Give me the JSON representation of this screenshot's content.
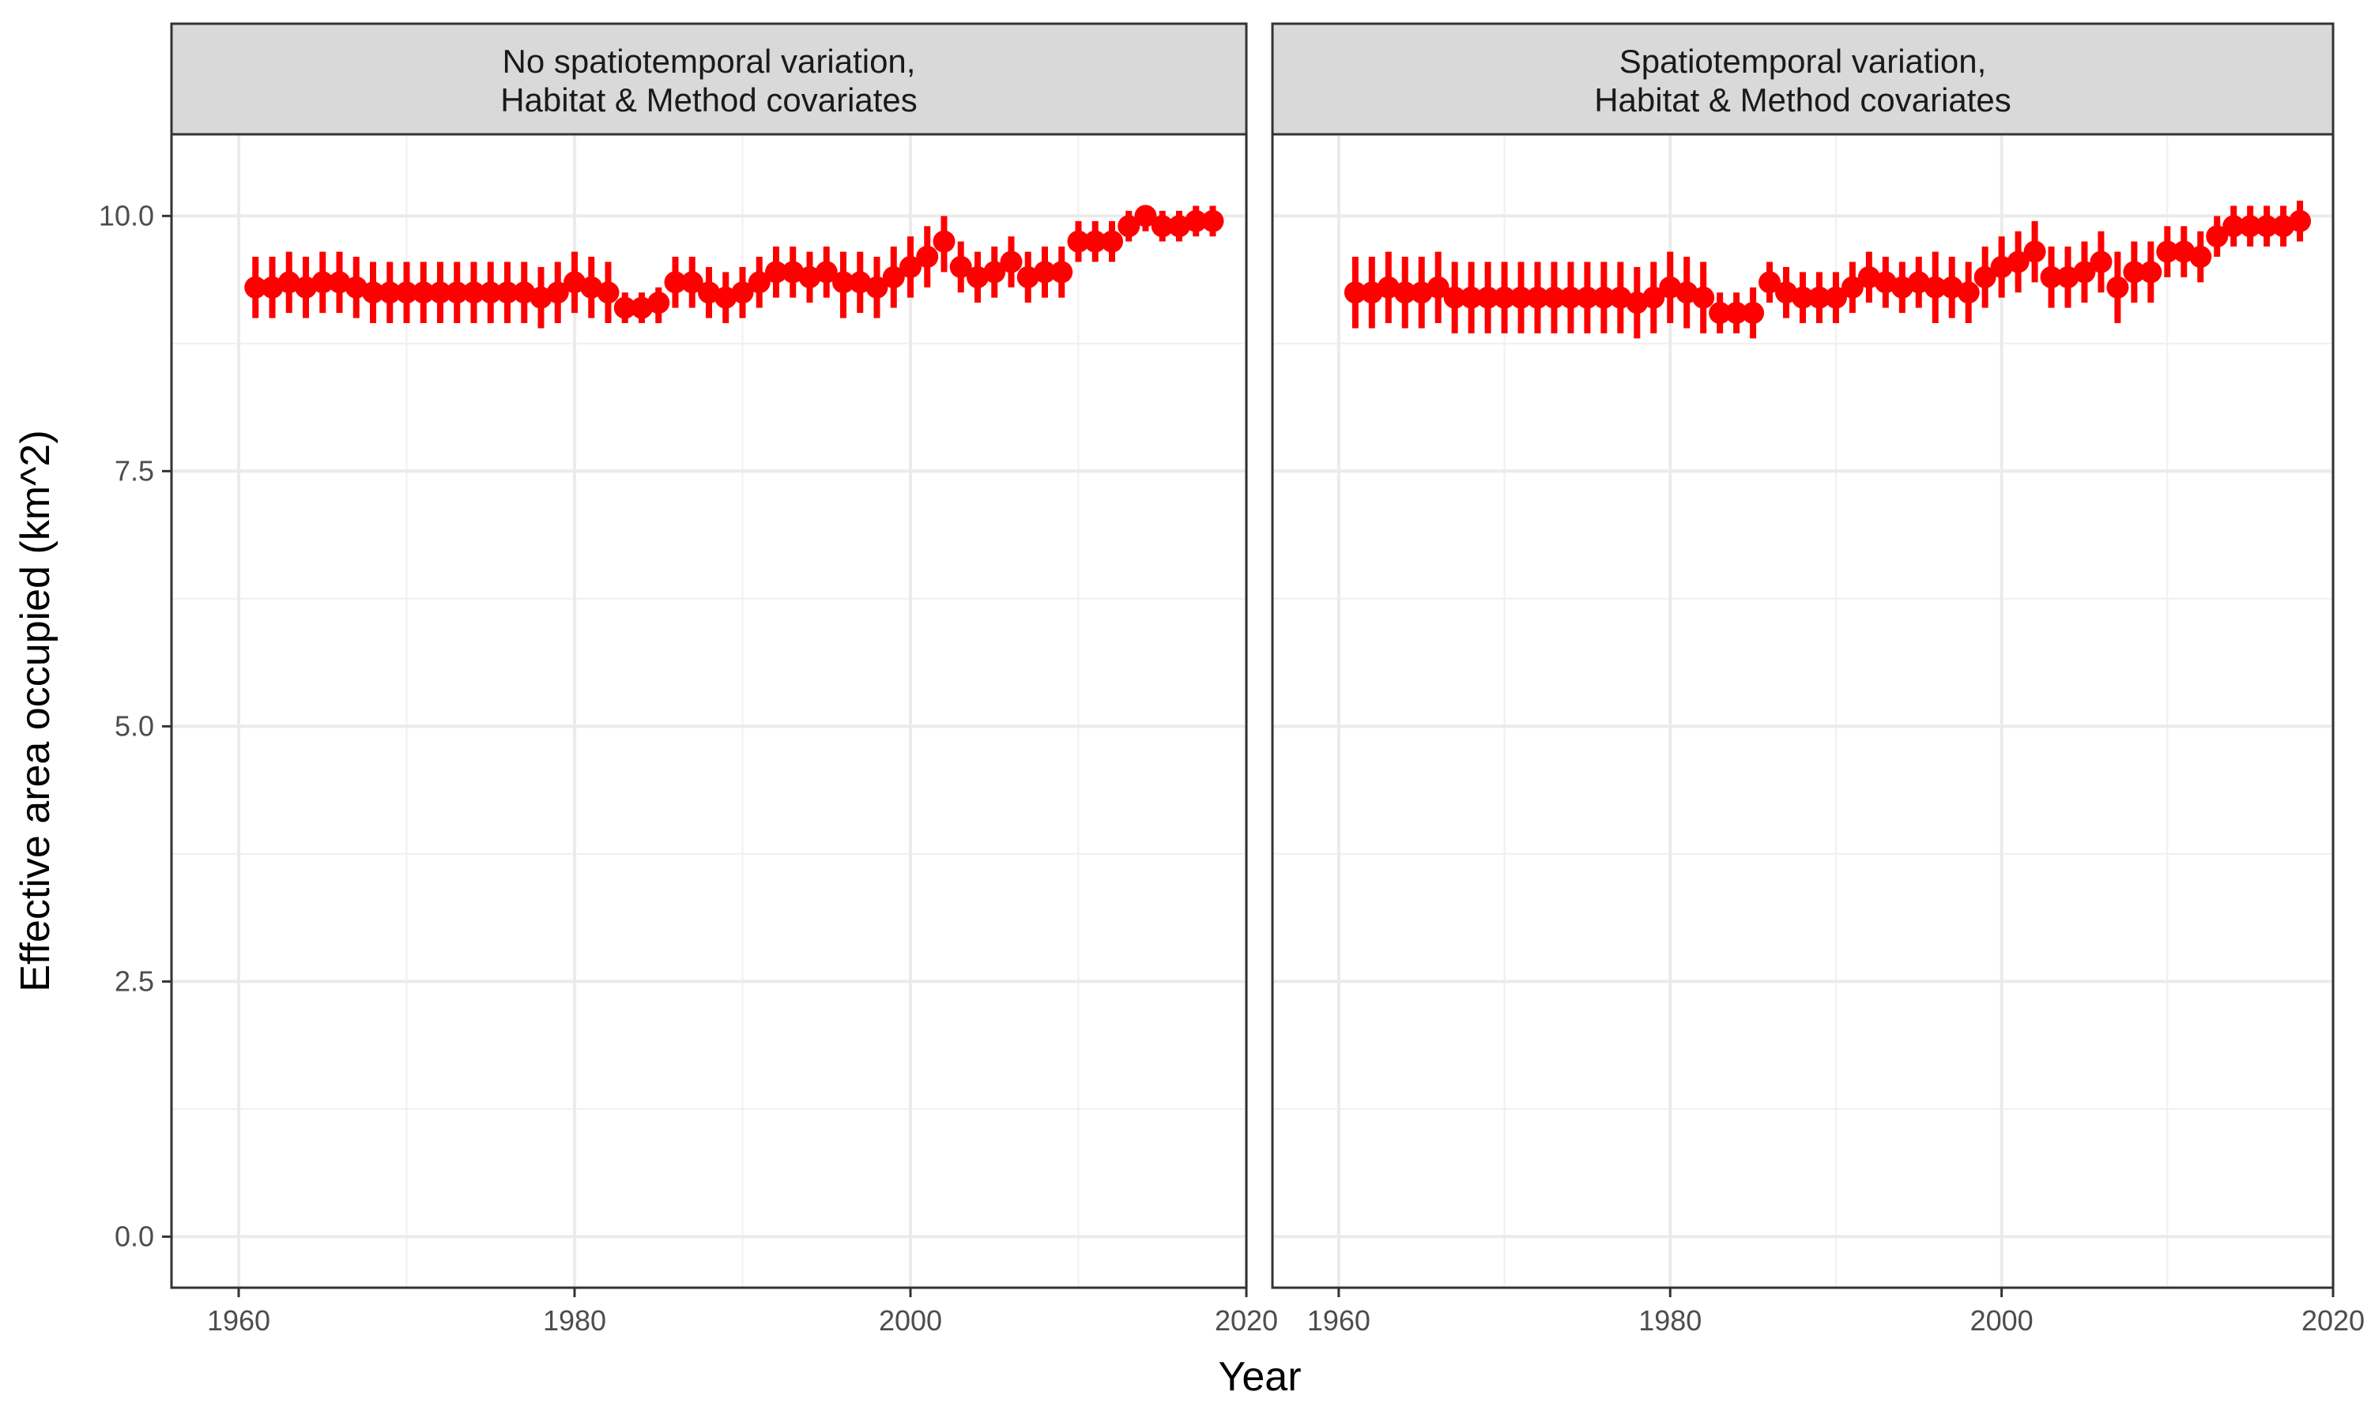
{
  "chart_data": {
    "type": "scatter",
    "xlabel": "Year",
    "ylabel": "Effective area occupied (km^2)",
    "xlim": [
      1956,
      2020
    ],
    "ylim": [
      -0.5,
      10.8
    ],
    "x_ticks": [
      1960,
      1980,
      2000,
      2020
    ],
    "x_tick_labels": [
      "1960",
      "1980",
      "2000",
      "2020"
    ],
    "y_ticks": [
      0,
      2.5,
      5,
      7.5,
      10
    ],
    "y_tick_labels": [
      "0.0",
      "2.5",
      "5.0",
      "7.5",
      "10.0"
    ],
    "grid": true,
    "series_color": "#ff0000",
    "panels": [
      {
        "strip_lines": [
          "No spatiotemporal variation,",
          "Habitat & Method covariates"
        ],
        "series": {
          "x": [
            1961,
            1962,
            1963,
            1964,
            1965,
            1966,
            1967,
            1968,
            1969,
            1970,
            1971,
            1972,
            1973,
            1974,
            1975,
            1976,
            1977,
            1978,
            1979,
            1980,
            1981,
            1982,
            1983,
            1984,
            1985,
            1986,
            1987,
            1988,
            1989,
            1990,
            1991,
            1992,
            1993,
            1994,
            1995,
            1996,
            1997,
            1998,
            1999,
            2000,
            2001,
            2002,
            2003,
            2004,
            2005,
            2006,
            2007,
            2008,
            2009,
            2010,
            2011,
            2012,
            2013,
            2014,
            2015,
            2016,
            2017,
            2018
          ],
          "y": [
            9.3,
            9.3,
            9.35,
            9.3,
            9.35,
            9.35,
            9.3,
            9.25,
            9.25,
            9.25,
            9.25,
            9.25,
            9.25,
            9.25,
            9.25,
            9.25,
            9.25,
            9.2,
            9.25,
            9.35,
            9.3,
            9.25,
            9.1,
            9.1,
            9.15,
            9.35,
            9.35,
            9.25,
            9.2,
            9.25,
            9.35,
            9.45,
            9.45,
            9.4,
            9.45,
            9.35,
            9.35,
            9.3,
            9.4,
            9.5,
            9.6,
            9.75,
            9.5,
            9.4,
            9.45,
            9.55,
            9.4,
            9.45,
            9.45,
            9.75,
            9.75,
            9.75,
            9.9,
            10.0,
            9.9,
            9.9,
            9.95,
            9.95
          ],
          "lower": [
            9.0,
            9.0,
            9.05,
            9.0,
            9.05,
            9.05,
            9.0,
            8.95,
            8.95,
            8.95,
            8.95,
            8.95,
            8.95,
            8.95,
            8.95,
            8.95,
            8.95,
            8.9,
            8.95,
            9.05,
            9.0,
            8.95,
            8.95,
            8.95,
            8.95,
            9.1,
            9.1,
            9.0,
            8.95,
            9.0,
            9.1,
            9.2,
            9.2,
            9.15,
            9.2,
            9.0,
            9.05,
            9.0,
            9.1,
            9.2,
            9.3,
            9.45,
            9.25,
            9.15,
            9.2,
            9.3,
            9.15,
            9.2,
            9.2,
            9.55,
            9.55,
            9.55,
            9.75,
            9.85,
            9.75,
            9.75,
            9.8,
            9.8
          ],
          "upper": [
            9.6,
            9.6,
            9.65,
            9.6,
            9.65,
            9.65,
            9.6,
            9.55,
            9.55,
            9.55,
            9.55,
            9.55,
            9.55,
            9.55,
            9.55,
            9.55,
            9.55,
            9.5,
            9.55,
            9.65,
            9.6,
            9.55,
            9.25,
            9.25,
            9.3,
            9.6,
            9.6,
            9.5,
            9.45,
            9.5,
            9.6,
            9.7,
            9.7,
            9.65,
            9.7,
            9.65,
            9.65,
            9.6,
            9.7,
            9.8,
            9.9,
            10.0,
            9.75,
            9.65,
            9.7,
            9.8,
            9.65,
            9.7,
            9.7,
            9.95,
            9.95,
            9.95,
            10.05,
            10.1,
            10.05,
            10.05,
            10.1,
            10.1
          ]
        }
      },
      {
        "strip_lines": [
          "Spatiotemporal variation,",
          "Habitat & Method covariates"
        ],
        "series": {
          "x": [
            1961,
            1962,
            1963,
            1964,
            1965,
            1966,
            1967,
            1968,
            1969,
            1970,
            1971,
            1972,
            1973,
            1974,
            1975,
            1976,
            1977,
            1978,
            1979,
            1980,
            1981,
            1982,
            1983,
            1984,
            1985,
            1986,
            1987,
            1988,
            1989,
            1990,
            1991,
            1992,
            1993,
            1994,
            1995,
            1996,
            1997,
            1998,
            1999,
            2000,
            2001,
            2002,
            2003,
            2004,
            2005,
            2006,
            2007,
            2008,
            2009,
            2010,
            2011,
            2012,
            2013,
            2014,
            2015,
            2016,
            2017,
            2018
          ],
          "y": [
            9.25,
            9.25,
            9.3,
            9.25,
            9.25,
            9.3,
            9.2,
            9.2,
            9.2,
            9.2,
            9.2,
            9.2,
            9.2,
            9.2,
            9.2,
            9.2,
            9.2,
            9.15,
            9.2,
            9.3,
            9.25,
            9.2,
            9.05,
            9.05,
            9.05,
            9.35,
            9.25,
            9.2,
            9.2,
            9.2,
            9.3,
            9.4,
            9.35,
            9.3,
            9.35,
            9.3,
            9.3,
            9.25,
            9.4,
            9.5,
            9.55,
            9.65,
            9.4,
            9.4,
            9.45,
            9.55,
            9.3,
            9.45,
            9.45,
            9.65,
            9.65,
            9.6,
            9.8,
            9.9,
            9.9,
            9.9,
            9.9,
            9.95
          ],
          "lower": [
            8.9,
            8.9,
            8.95,
            8.9,
            8.9,
            8.95,
            8.85,
            8.85,
            8.85,
            8.85,
            8.85,
            8.85,
            8.85,
            8.85,
            8.85,
            8.85,
            8.85,
            8.8,
            8.85,
            8.95,
            8.9,
            8.85,
            8.85,
            8.85,
            8.8,
            9.15,
            9.0,
            8.95,
            8.95,
            8.95,
            9.05,
            9.15,
            9.1,
            9.05,
            9.1,
            8.95,
            9.0,
            8.95,
            9.1,
            9.2,
            9.25,
            9.35,
            9.1,
            9.1,
            9.15,
            9.25,
            8.95,
            9.15,
            9.15,
            9.4,
            9.4,
            9.35,
            9.6,
            9.7,
            9.7,
            9.7,
            9.7,
            9.75
          ],
          "upper": [
            9.6,
            9.6,
            9.65,
            9.6,
            9.6,
            9.65,
            9.55,
            9.55,
            9.55,
            9.55,
            9.55,
            9.55,
            9.55,
            9.55,
            9.55,
            9.55,
            9.55,
            9.5,
            9.55,
            9.65,
            9.6,
            9.55,
            9.25,
            9.25,
            9.3,
            9.55,
            9.5,
            9.45,
            9.45,
            9.45,
            9.55,
            9.65,
            9.6,
            9.55,
            9.6,
            9.65,
            9.6,
            9.55,
            9.7,
            9.8,
            9.85,
            9.95,
            9.7,
            9.7,
            9.75,
            9.85,
            9.65,
            9.75,
            9.75,
            9.9,
            9.9,
            9.85,
            10.0,
            10.1,
            10.1,
            10.1,
            10.1,
            10.15
          ]
        }
      }
    ]
  }
}
